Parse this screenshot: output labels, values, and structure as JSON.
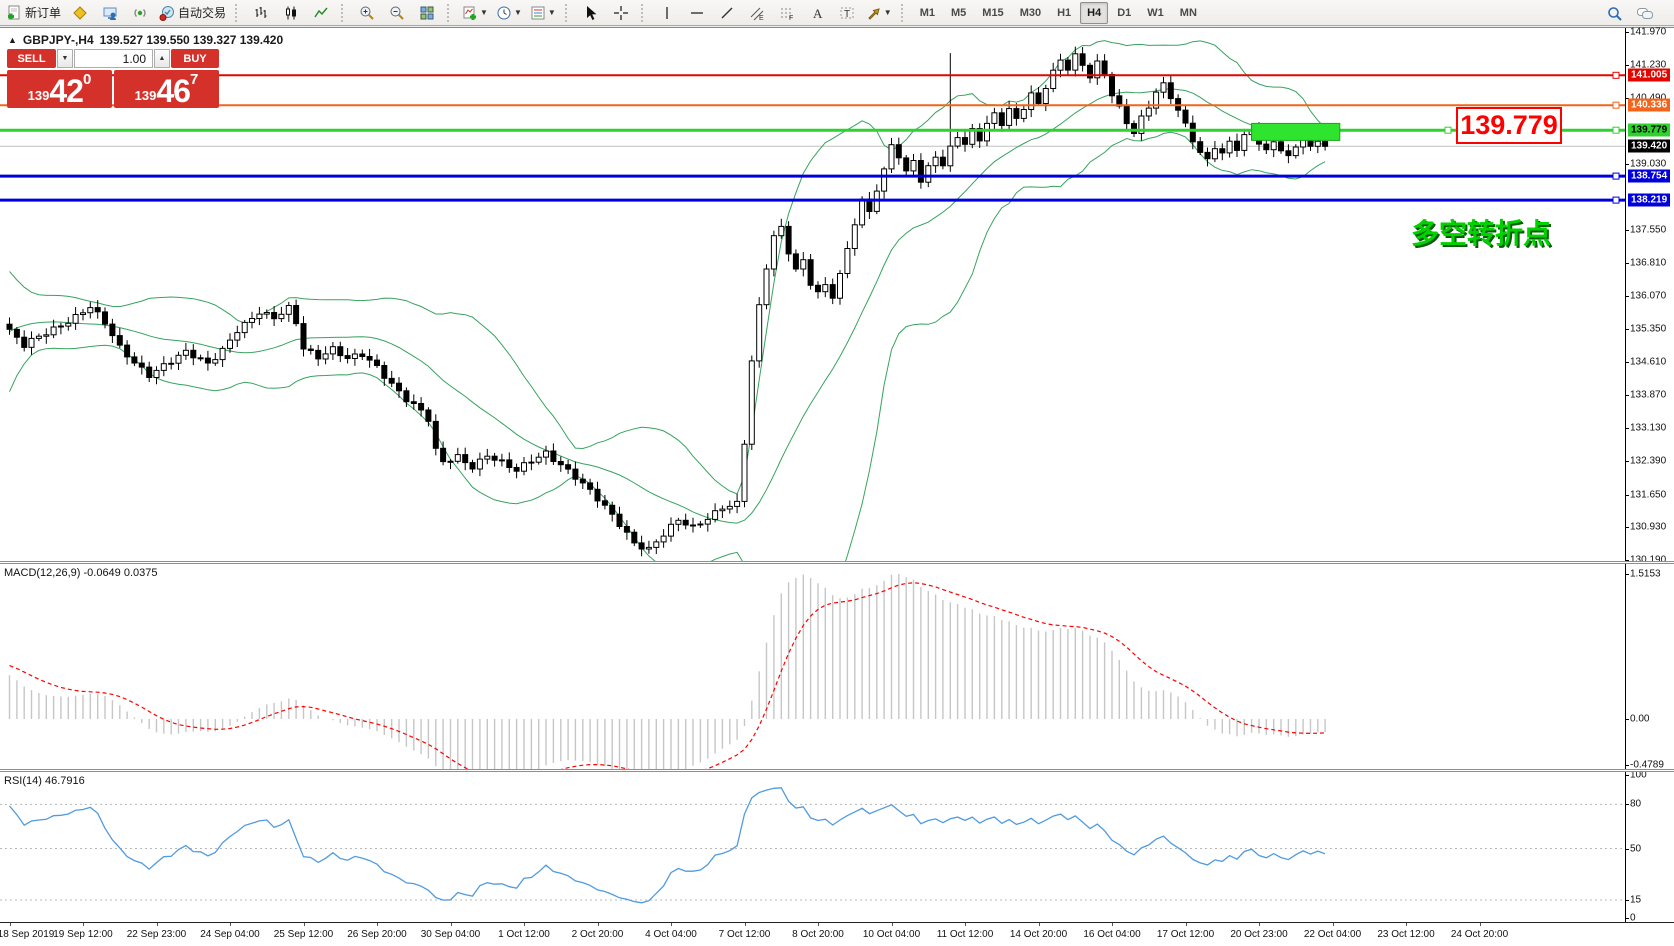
{
  "toolbar": {
    "new_order_label": "新订单",
    "autotrade_label": "自动交易",
    "timeframes": [
      "M1",
      "M5",
      "M15",
      "M30",
      "H1",
      "H4",
      "D1",
      "W1",
      "MN"
    ],
    "active_timeframe": "H4"
  },
  "header": {
    "collapse_icon": "▲",
    "symbol_title": "GBPJPY-,H4",
    "ohlc": "139.527 139.550 139.327 139.420"
  },
  "trade_panel": {
    "sell_label": "SELL",
    "buy_label": "BUY",
    "volume": "1.00",
    "spin_down": "▼",
    "spin_up": "▲",
    "sell_price": {
      "prefix": "139",
      "big": "42",
      "sup": "0"
    },
    "buy_price": {
      "prefix": "139",
      "big": "46",
      "sup": "7"
    }
  },
  "annotations": {
    "price_box_text": "139.779",
    "cn_note": "多空转折点"
  },
  "main_pane": {
    "y_ticks": [
      "141.970",
      "141.230",
      "140.490",
      "139.030",
      "137.550",
      "136.810",
      "136.070",
      "135.350",
      "134.610",
      "133.870",
      "133.130",
      "132.390",
      "131.650",
      "130.930",
      "130.190"
    ],
    "hlines": [
      {
        "price": 141.005,
        "label": "141.005",
        "color": "#e10600",
        "width": 2,
        "text": "#ffffff"
      },
      {
        "price": 140.336,
        "label": "140.336",
        "color": "#f2641b",
        "width": 2,
        "text": "#ffffff"
      },
      {
        "price": 139.779,
        "label": "139.779",
        "color": "#2ed12e",
        "width": 3,
        "text": "#000000"
      },
      {
        "price": 139.42,
        "label": "139.420",
        "color": "#c0c0c0",
        "width": 1,
        "text": "#ffffff",
        "badge": "#000000",
        "current": true
      },
      {
        "price": 138.754,
        "label": "138.754",
        "color": "#0000dd",
        "width": 3,
        "text": "#ffffff"
      },
      {
        "price": 138.219,
        "label": "138.219",
        "color": "#0000dd",
        "width": 3,
        "text": "#ffffff"
      }
    ],
    "highlight_box": {
      "from_index": 169,
      "to_index": 181,
      "price_top": 139.93,
      "price_bottom": 139.55,
      "color": "#2ee42e",
      "border": "#17a817"
    }
  },
  "macd_pane": {
    "label": "MACD(12,26,9)",
    "values": "-0.0649 0.0375",
    "ticks": [
      "1.5153",
      "0.00",
      "-0.4789"
    ],
    "histogram_color": "#c6c6c6",
    "signal_color": "#ff0000"
  },
  "rsi_pane": {
    "label": "RSI(14)",
    "value": "46.7916",
    "levels": [
      "100",
      "80",
      "50",
      "15",
      "0"
    ],
    "line_color": "#4f9be0"
  },
  "time_axis": [
    "18 Sep 2019",
    "19 Sep 12:00",
    "22 Sep 23:00",
    "24 Sep 04:00",
    "25 Sep 12:00",
    "26 Sep 20:00",
    "30 Sep 04:00",
    "1 Oct 12:00",
    "2 Oct 20:00",
    "4 Oct 04:00",
    "7 Oct 12:00",
    "8 Oct 20:00",
    "10 Oct 04:00",
    "11 Oct 12:00",
    "14 Oct 20:00",
    "16 Oct 04:00",
    "17 Oct 12:00",
    "20 Oct 23:00",
    "22 Oct 04:00",
    "23 Oct 12:00",
    "24 Oct 20:00"
  ],
  "chart_data": {
    "type": "candlestick",
    "symbol": "GBPJPY-",
    "timeframe": "H4",
    "title": "GBPJPY-,H4 139.527 139.550 139.327 139.420",
    "price_axis": {
      "min": 130.19,
      "max": 141.97,
      "tick_step": 0.74
    },
    "indicators": {
      "bollinger": {
        "period": 20,
        "deviation": 2,
        "color": "#37a35f"
      },
      "macd": {
        "fast": 12,
        "slow": 26,
        "signal": 9,
        "current_macd": -0.0649,
        "current_signal": 0.0375,
        "scale_max": 1.5153,
        "scale_min": -0.4789
      },
      "rsi": {
        "period": 14,
        "current": 46.7916
      }
    },
    "bars_count": 180,
    "prepend_closes": [
      133.2,
      133.5,
      133.9,
      134.3,
      134.7,
      135.0,
      135.3,
      135.5,
      135.7,
      135.85,
      135.95,
      136.0,
      135.9,
      135.8,
      135.7,
      135.6,
      135.5,
      135.45,
      135.4,
      135.35
    ],
    "close_anchors": [
      [
        0,
        135.3
      ],
      [
        2,
        134.95
      ],
      [
        5,
        135.25
      ],
      [
        8,
        135.55
      ],
      [
        11,
        135.85
      ],
      [
        13,
        135.45
      ],
      [
        15,
        134.9
      ],
      [
        17,
        134.6
      ],
      [
        19,
        134.35
      ],
      [
        21,
        134.55
      ],
      [
        24,
        134.8
      ],
      [
        27,
        134.55
      ],
      [
        29,
        134.9
      ],
      [
        31,
        135.35
      ],
      [
        34,
        135.7
      ],
      [
        36,
        135.55
      ],
      [
        38,
        135.8
      ],
      [
        39,
        135.5
      ],
      [
        40,
        134.95
      ],
      [
        42,
        134.75
      ],
      [
        44,
        134.9
      ],
      [
        46,
        134.65
      ],
      [
        48,
        134.75
      ],
      [
        50,
        134.5
      ],
      [
        52,
        134.15
      ],
      [
        54,
        133.8
      ],
      [
        56,
        133.5
      ],
      [
        57,
        133.3
      ],
      [
        58,
        132.6
      ],
      [
        59,
        132.35
      ],
      [
        61,
        132.5
      ],
      [
        63,
        132.3
      ],
      [
        65,
        132.55
      ],
      [
        67,
        132.35
      ],
      [
        69,
        132.15
      ],
      [
        71,
        132.4
      ],
      [
        73,
        132.6
      ],
      [
        75,
        132.35
      ],
      [
        77,
        132.05
      ],
      [
        79,
        131.7
      ],
      [
        81,
        131.35
      ],
      [
        83,
        131.0
      ],
      [
        85,
        130.6
      ],
      [
        87,
        130.45
      ],
      [
        89,
        130.75
      ],
      [
        91,
        131.05
      ],
      [
        93,
        130.9
      ],
      [
        95,
        131.15
      ],
      [
        97,
        131.4
      ],
      [
        99,
        131.45
      ],
      [
        100,
        132.8
      ],
      [
        101,
        134.6
      ],
      [
        102,
        135.8
      ],
      [
        103,
        136.7
      ],
      [
        104,
        137.4
      ],
      [
        105,
        137.6
      ],
      [
        106,
        137.1
      ],
      [
        107,
        136.7
      ],
      [
        108,
        136.9
      ],
      [
        109,
        136.4
      ],
      [
        110,
        136.15
      ],
      [
        111,
        136.3
      ],
      [
        112,
        136.05
      ],
      [
        113,
        136.5
      ],
      [
        114,
        137.1
      ],
      [
        115,
        137.7
      ],
      [
        116,
        138.2
      ],
      [
        117,
        138.0
      ],
      [
        118,
        138.5
      ],
      [
        119,
        138.9
      ],
      [
        120,
        139.5
      ],
      [
        121,
        139.2
      ],
      [
        122,
        138.8
      ],
      [
        123,
        139.1
      ],
      [
        124,
        138.6
      ],
      [
        125,
        138.9
      ],
      [
        126,
        139.2
      ],
      [
        127,
        139.0
      ],
      [
        128,
        139.4
      ],
      [
        129,
        139.7
      ],
      [
        130,
        139.5
      ],
      [
        131,
        139.8
      ],
      [
        132,
        139.6
      ],
      [
        133,
        139.9
      ],
      [
        134,
        140.1
      ],
      [
        135,
        139.9
      ],
      [
        136,
        140.2
      ],
      [
        137,
        140.0
      ],
      [
        138,
        140.3
      ],
      [
        139,
        140.6
      ],
      [
        140,
        140.4
      ],
      [
        141,
        140.8
      ],
      [
        142,
        141.1
      ],
      [
        143,
        141.35
      ],
      [
        144,
        141.15
      ],
      [
        145,
        141.4
      ],
      [
        146,
        141.2
      ],
      [
        147,
        140.95
      ],
      [
        148,
        141.25
      ],
      [
        149,
        141.05
      ],
      [
        150,
        140.6
      ],
      [
        151,
        140.3
      ],
      [
        152,
        140.0
      ],
      [
        153,
        139.75
      ],
      [
        154,
        140.05
      ],
      [
        155,
        140.3
      ],
      [
        156,
        140.6
      ],
      [
        157,
        140.75
      ],
      [
        158,
        140.5
      ],
      [
        159,
        140.2
      ],
      [
        160,
        139.9
      ],
      [
        161,
        139.6
      ],
      [
        162,
        139.3
      ],
      [
        163,
        139.15
      ],
      [
        164,
        139.45
      ],
      [
        165,
        139.25
      ],
      [
        166,
        139.5
      ],
      [
        167,
        139.35
      ],
      [
        168,
        139.6
      ],
      [
        169,
        139.75
      ],
      [
        170,
        139.5
      ],
      [
        171,
        139.3
      ],
      [
        172,
        139.55
      ],
      [
        173,
        139.4
      ],
      [
        174,
        139.2
      ],
      [
        175,
        139.45
      ],
      [
        176,
        139.6
      ],
      [
        177,
        139.35
      ],
      [
        178,
        139.53
      ],
      [
        179,
        139.42
      ]
    ],
    "candle_overrides": {
      "128": {
        "high": 141.5,
        "low": 138.85
      },
      "179": {
        "open": 139.527,
        "high": 139.55,
        "low": 139.327,
        "close": 139.42
      }
    }
  }
}
